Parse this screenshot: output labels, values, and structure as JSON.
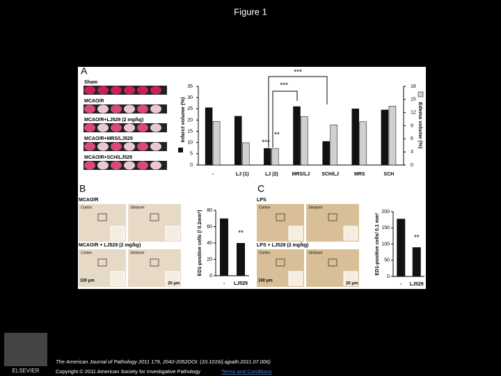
{
  "header": {
    "title": "Figure 1"
  },
  "figure": {
    "panel_a": {
      "letter": "A",
      "slice_labels": [
        "Sham",
        "MCAO/R",
        "MCAO/R+LJ529 (2 mg/kg)",
        "MCAO/R+MRS/LJ529",
        "MCAO/R+SCH/LJ529"
      ],
      "chart": {
        "type": "bar",
        "categories": [
          "-",
          "LJ (1)",
          "LJ (2)",
          "MRS/LJ",
          "SCH/LJ",
          "MRS",
          "SCH"
        ],
        "series": [
          {
            "name": "Infarct volume (%)",
            "color": "#111111",
            "values": [
              25.5,
              21.7,
              7.4,
              26,
              10.5,
              25,
              24.5
            ]
          },
          {
            "name": "Edema volume (%)",
            "color": "#d0d0d0",
            "axis": "y2",
            "values": [
              10,
              5.1,
              3.8,
              11.1,
              9.2,
              9.9,
              13.5
            ]
          }
        ],
        "ylim": [
          0,
          35
        ],
        "yticks": [
          0,
          5,
          10,
          15,
          20,
          25,
          30,
          35
        ],
        "y2lim": [
          0,
          18
        ],
        "y2ticks": [
          0,
          3,
          6,
          9,
          12,
          15,
          18
        ],
        "annotations": [
          "***",
          "***",
          "***",
          "**"
        ]
      }
    },
    "panel_b": {
      "letter": "B",
      "labels": [
        "MCAO/R",
        "Cortex",
        "Striatum",
        "MCAO/R + LJ529 (2 mg/kg)",
        "Cortex",
        "Striatum",
        "100 μm",
        "20 μm"
      ],
      "chart": {
        "type": "bar",
        "y_label": "ED1-positive cells (/ 0.2mm²)",
        "categories": [
          "-",
          "LJ529"
        ],
        "values": [
          70,
          40
        ],
        "color": "#111111",
        "ylim": [
          0,
          80
        ],
        "yticks": [
          0,
          20,
          40,
          60,
          80
        ],
        "annotations": [
          "**"
        ]
      }
    },
    "panel_c": {
      "letter": "C",
      "labels": [
        "LPS",
        "Cortex",
        "Striatum",
        "LPS + LJ529 (2 mg/kg)",
        "Cortex",
        "Striatum",
        "100 μm",
        "20 μm"
      ],
      "chart": {
        "type": "bar",
        "y_label": "ED1-positive cells/ 0.1 mm²",
        "categories": [
          "-",
          "LJ529"
        ],
        "values": [
          178,
          90
        ],
        "color": "#111111",
        "ylim": [
          0,
          200
        ],
        "yticks": [
          0,
          50,
          100,
          150,
          200
        ],
        "annotations": [
          "**"
        ]
      }
    }
  },
  "footer": {
    "citation": "The American Journal of Pathology 2011 179, 2042-2052DOI: (10.1016/j.ajpath.2011.07.006)",
    "copyright": "Copyright © 2011 American Society for Investigative Pathology",
    "link": "Terms and Conditions",
    "logo": "ELSEVIER"
  }
}
